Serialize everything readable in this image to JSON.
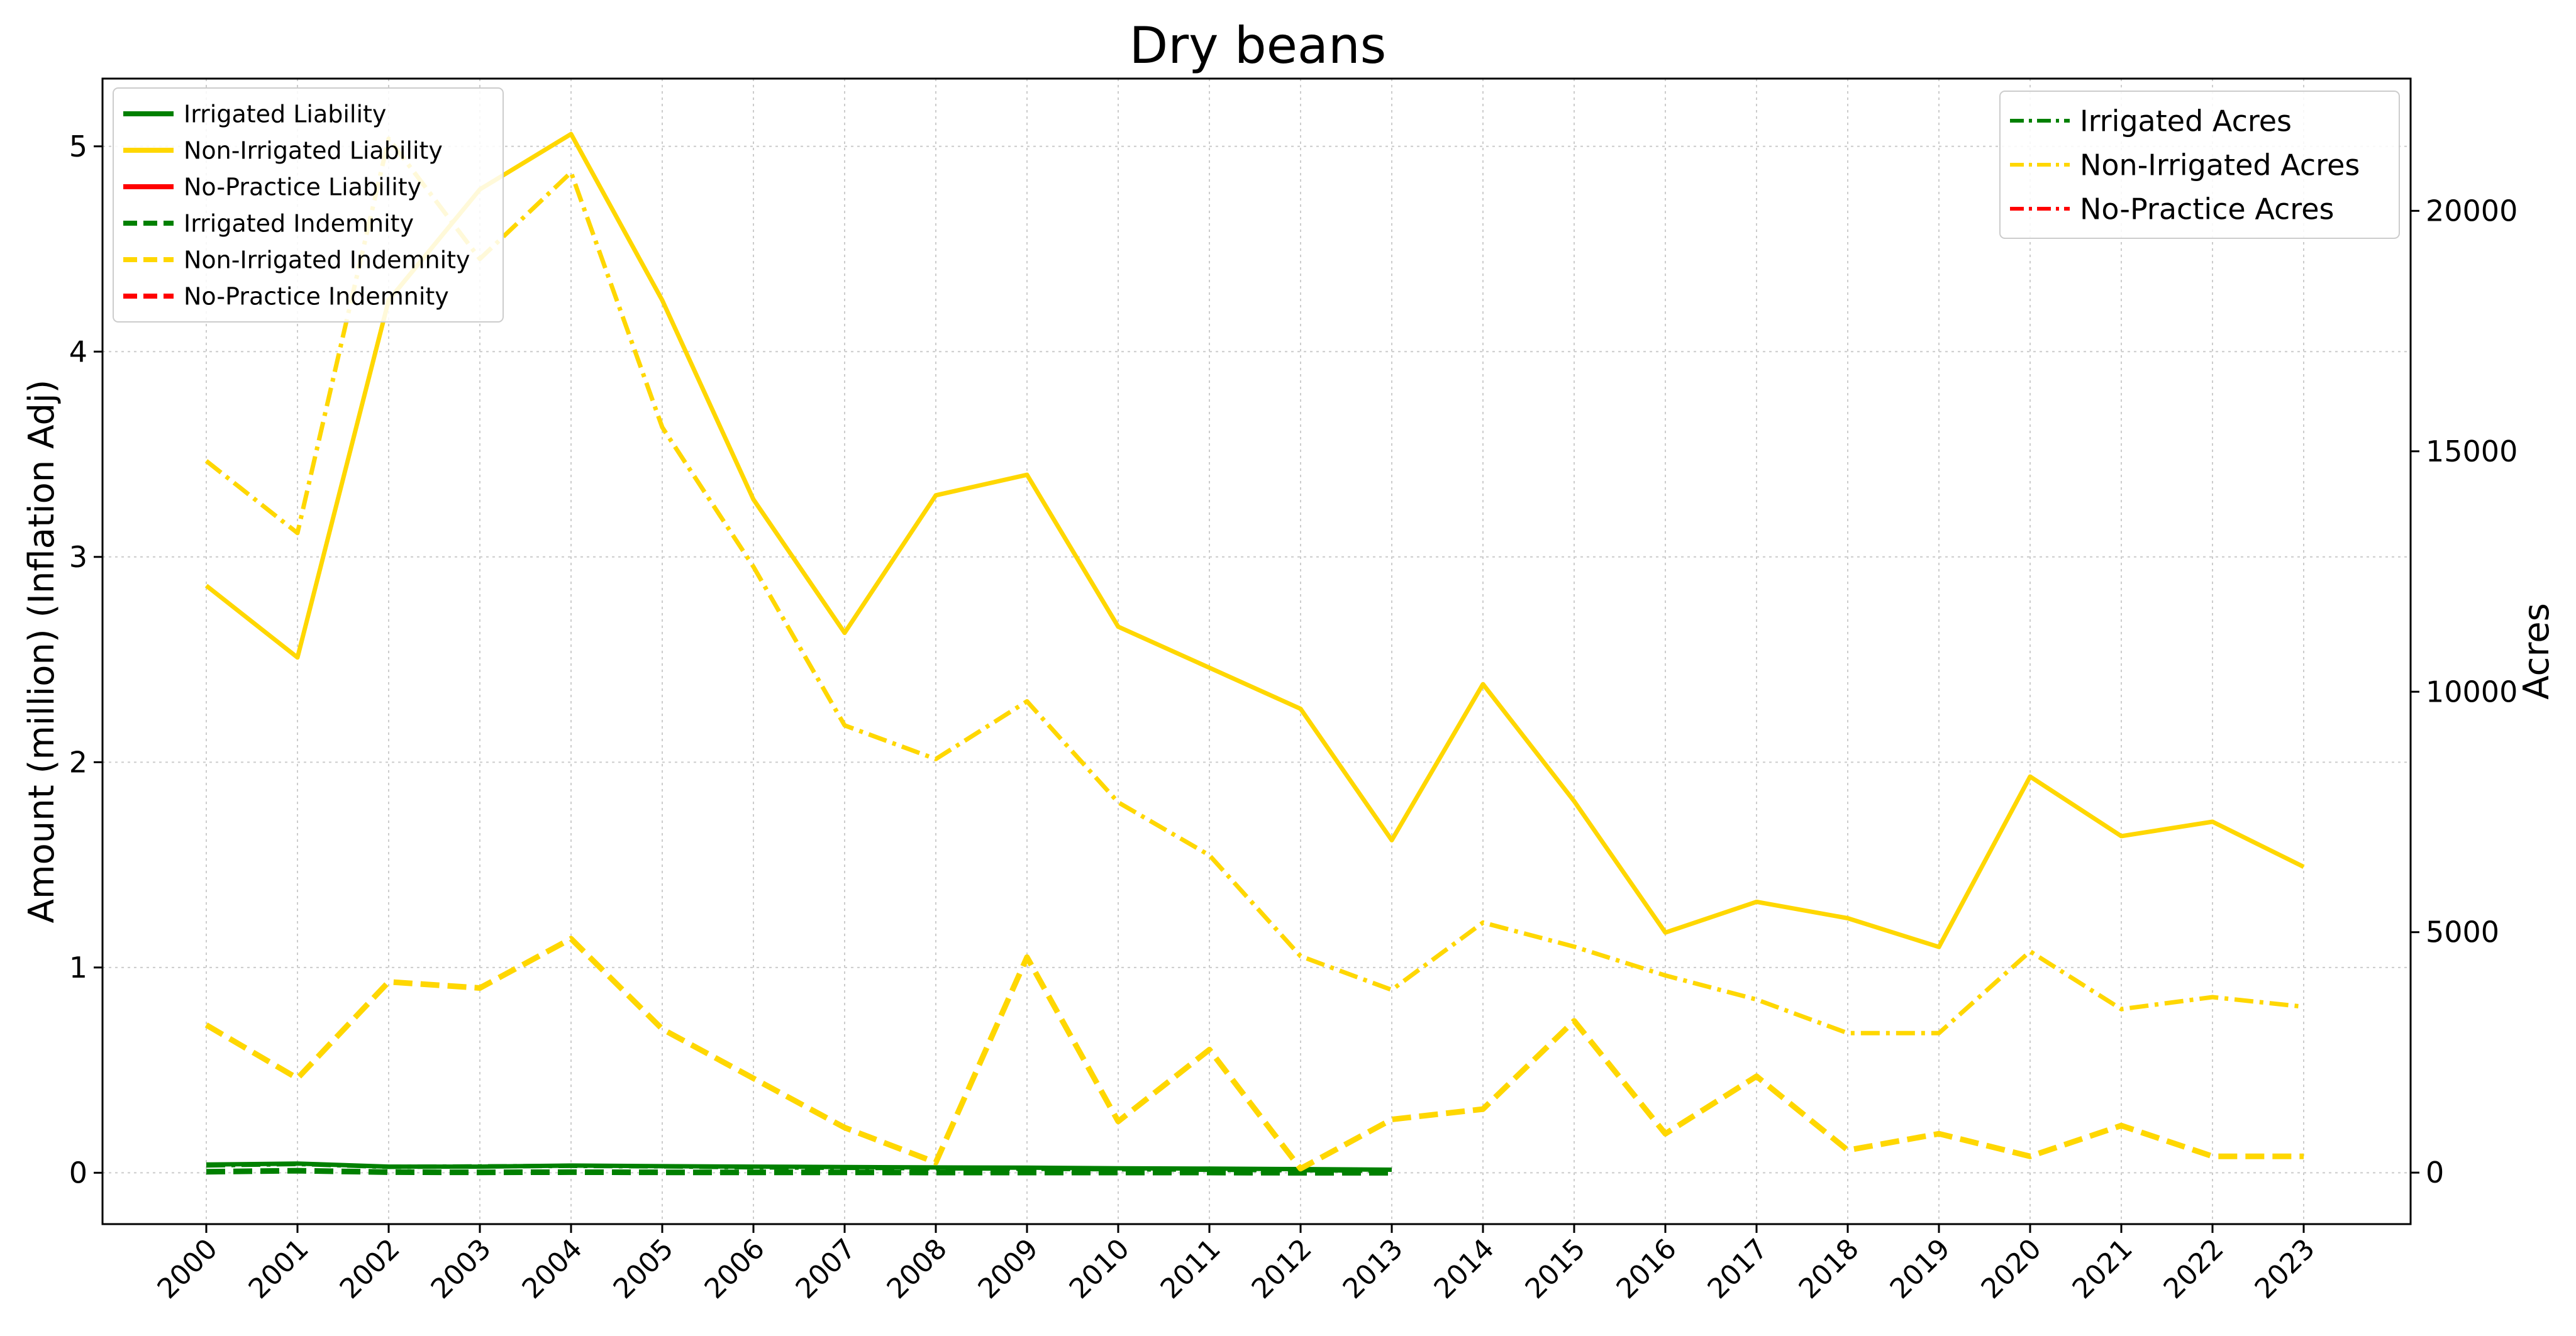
{
  "chart_data": {
    "type": "line",
    "title": "Dry beans",
    "ylabel": "Amount (million) (Inflation Adj)",
    "ylabel_right": "Acres",
    "x": [
      "2000",
      "2001",
      "2002",
      "2003",
      "2004",
      "2005",
      "2006",
      "2007",
      "2008",
      "2009",
      "2010",
      "2011",
      "2012",
      "2013",
      "2014",
      "2015",
      "2016",
      "2017",
      "2018",
      "2019",
      "2020",
      "2021",
      "2022",
      "2023"
    ],
    "ylim": [
      -0.25,
      5.33
    ],
    "ylim_right": [
      -1070,
      22750
    ],
    "yticks": [
      0,
      1,
      2,
      3,
      4,
      5
    ],
    "yticks_right": [
      0,
      5000,
      10000,
      15000,
      20000
    ],
    "grid": true,
    "colors": {
      "irrigated": "#008000",
      "non_irrigated": "#FFD700",
      "no_practice": "#FF0000"
    },
    "series_left": [
      {
        "name": "Irrigated Liability",
        "color": "#008000",
        "dash": "solid",
        "values": [
          0.04,
          0.045,
          0.03,
          0.03,
          0.035,
          0.032,
          0.03,
          0.028,
          0.026,
          0.025,
          0.022,
          0.02,
          0.018,
          0.015,
          null,
          null,
          null,
          null,
          null,
          null,
          null,
          null,
          null,
          null
        ]
      },
      {
        "name": "Non-Irrigated Liability",
        "color": "#FFD700",
        "dash": "solid",
        "values": [
          2.86,
          2.51,
          4.25,
          4.79,
          5.06,
          4.25,
          3.28,
          2.63,
          3.3,
          3.4,
          2.66,
          2.46,
          2.26,
          1.62,
          2.38,
          1.81,
          1.17,
          1.32,
          1.24,
          1.1,
          1.93,
          1.64,
          1.71,
          1.49
        ]
      },
      {
        "name": "No-Practice Liability",
        "color": "#FF0000",
        "dash": "solid",
        "values": [
          null,
          null,
          null,
          null,
          null,
          null,
          null,
          null,
          null,
          null,
          null,
          null,
          null,
          null,
          null,
          null,
          null,
          null,
          null,
          null,
          null,
          null,
          null,
          null
        ]
      },
      {
        "name": "Irrigated Indemnity",
        "color": "#008000",
        "dash": "dashed",
        "values": [
          0.005,
          0.01,
          0.003,
          0.002,
          0.003,
          0.002,
          0.002,
          0.002,
          0.001,
          0.001,
          0.001,
          0.001,
          0.0,
          0.0,
          null,
          null,
          null,
          null,
          null,
          null,
          null,
          null,
          null,
          null
        ]
      },
      {
        "name": "Non-Irrigated Indemnity",
        "color": "#FFD700",
        "dash": "dashed",
        "values": [
          0.72,
          0.46,
          0.93,
          0.9,
          1.14,
          0.7,
          0.46,
          0.22,
          0.05,
          1.05,
          0.25,
          0.6,
          0.02,
          0.26,
          0.31,
          0.74,
          0.19,
          0.47,
          0.11,
          0.19,
          0.08,
          0.23,
          0.08,
          0.08
        ]
      },
      {
        "name": "No-Practice Indemnity",
        "color": "#FF0000",
        "dash": "dashed",
        "values": [
          null,
          null,
          null,
          null,
          null,
          null,
          null,
          null,
          null,
          null,
          null,
          null,
          null,
          null,
          null,
          null,
          null,
          null,
          null,
          null,
          null,
          null,
          null,
          null
        ]
      }
    ],
    "series_right": [
      {
        "name": "Irrigated Acres",
        "color": "#008000",
        "dash": "dashdot",
        "values": [
          150,
          180,
          120,
          130,
          140,
          130,
          110,
          100,
          90,
          80,
          70,
          60,
          50,
          40,
          null,
          null,
          null,
          null,
          null,
          null,
          null,
          null,
          null,
          null
        ]
      },
      {
        "name": "Non-Irrigated Acres",
        "color": "#FFD700",
        "dash": "dashdot",
        "values": [
          14800,
          13300,
          21500,
          19000,
          20800,
          15500,
          12600,
          9300,
          8600,
          9800,
          7700,
          6600,
          4500,
          3800,
          5200,
          4700,
          4100,
          3600,
          2900,
          2900,
          4600,
          3400,
          3650,
          3450
        ]
      },
      {
        "name": "No-Practice Acres",
        "color": "#FF0000",
        "dash": "dashdot",
        "values": [
          null,
          null,
          null,
          null,
          null,
          null,
          null,
          null,
          null,
          null,
          null,
          null,
          null,
          null,
          null,
          null,
          null,
          null,
          null,
          null,
          null,
          null,
          null,
          null
        ]
      }
    ],
    "legend_left_position": "top-left",
    "legend_right_position": "top-right"
  }
}
